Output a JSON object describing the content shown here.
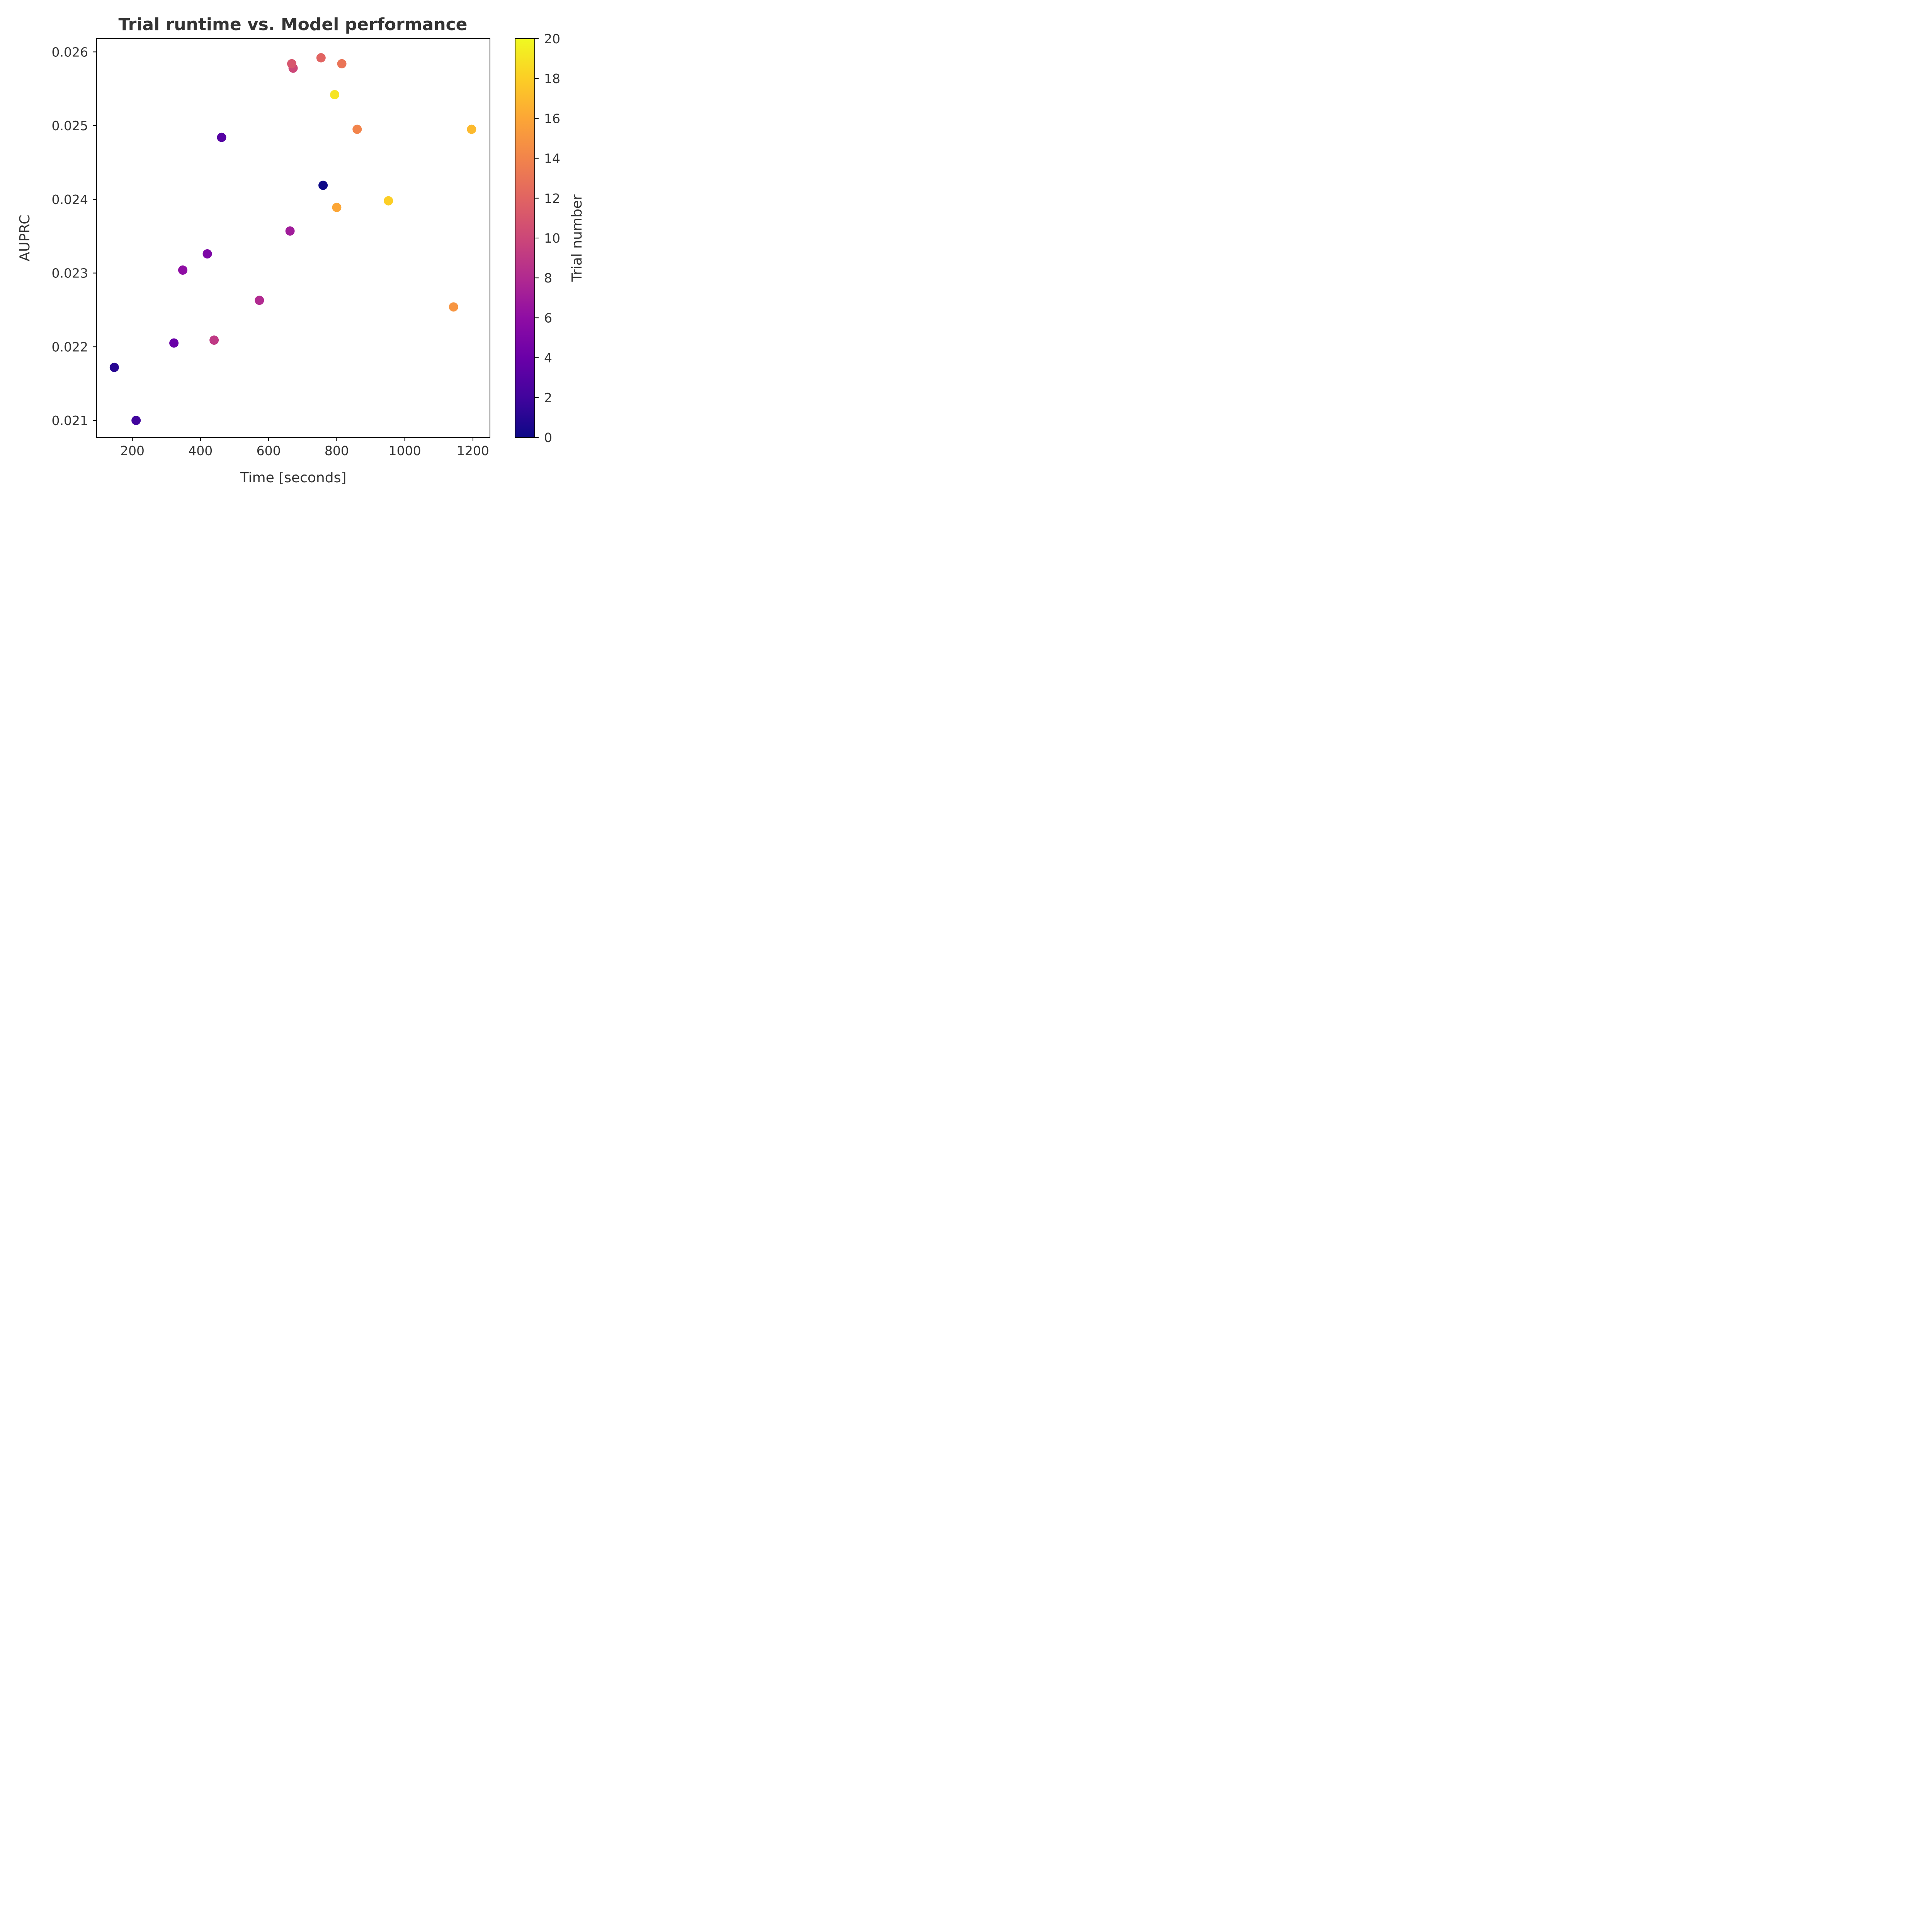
{
  "chart_data": {
    "type": "scatter",
    "title": "Trial runtime vs. Model performance",
    "xlabel": "Time [seconds]",
    "ylabel": "AUPRC",
    "xlim": [
      95,
      1250
    ],
    "ylim": [
      0.02077,
      0.02618
    ],
    "xticks": [
      200,
      400,
      600,
      800,
      1000,
      1200
    ],
    "yticks": [
      0.021,
      0.022,
      0.023,
      0.024,
      0.025,
      0.026
    ],
    "colorbar": {
      "label": "Trial number",
      "range": [
        0,
        20
      ],
      "ticks": [
        0,
        2,
        4,
        6,
        8,
        10,
        12,
        14,
        16,
        18,
        20
      ],
      "colormap": "plasma"
    },
    "grid": false,
    "points": [
      {
        "trial": 0,
        "x": 760,
        "y": 0.02419
      },
      {
        "trial": 1,
        "x": 147,
        "y": 0.02172
      },
      {
        "trial": 2,
        "x": 211,
        "y": 0.021
      },
      {
        "trial": 3,
        "x": 462,
        "y": 0.02484
      },
      {
        "trial": 4,
        "x": 322,
        "y": 0.02205
      },
      {
        "trial": 5,
        "x": 420,
        "y": 0.02326
      },
      {
        "trial": 6,
        "x": 348,
        "y": 0.02304
      },
      {
        "trial": 7,
        "x": 663,
        "y": 0.02357
      },
      {
        "trial": 8,
        "x": 573,
        "y": 0.02263
      },
      {
        "trial": 9,
        "x": 440,
        "y": 0.02209
      },
      {
        "trial": 10,
        "x": 672,
        "y": 0.02578
      },
      {
        "trial": 11,
        "x": 668,
        "y": 0.02584
      },
      {
        "trial": 12,
        "x": 754,
        "y": 0.02592
      },
      {
        "trial": 13,
        "x": 815,
        "y": 0.02584
      },
      {
        "trial": 14,
        "x": 860,
        "y": 0.02495
      },
      {
        "trial": 15,
        "x": 1143,
        "y": 0.02254
      },
      {
        "trial": 16,
        "x": 800,
        "y": 0.02389
      },
      {
        "trial": 17,
        "x": 1196,
        "y": 0.02495
      },
      {
        "trial": 18,
        "x": 952,
        "y": 0.02398
      },
      {
        "trial": 19,
        "x": 794,
        "y": 0.02542
      }
    ]
  }
}
